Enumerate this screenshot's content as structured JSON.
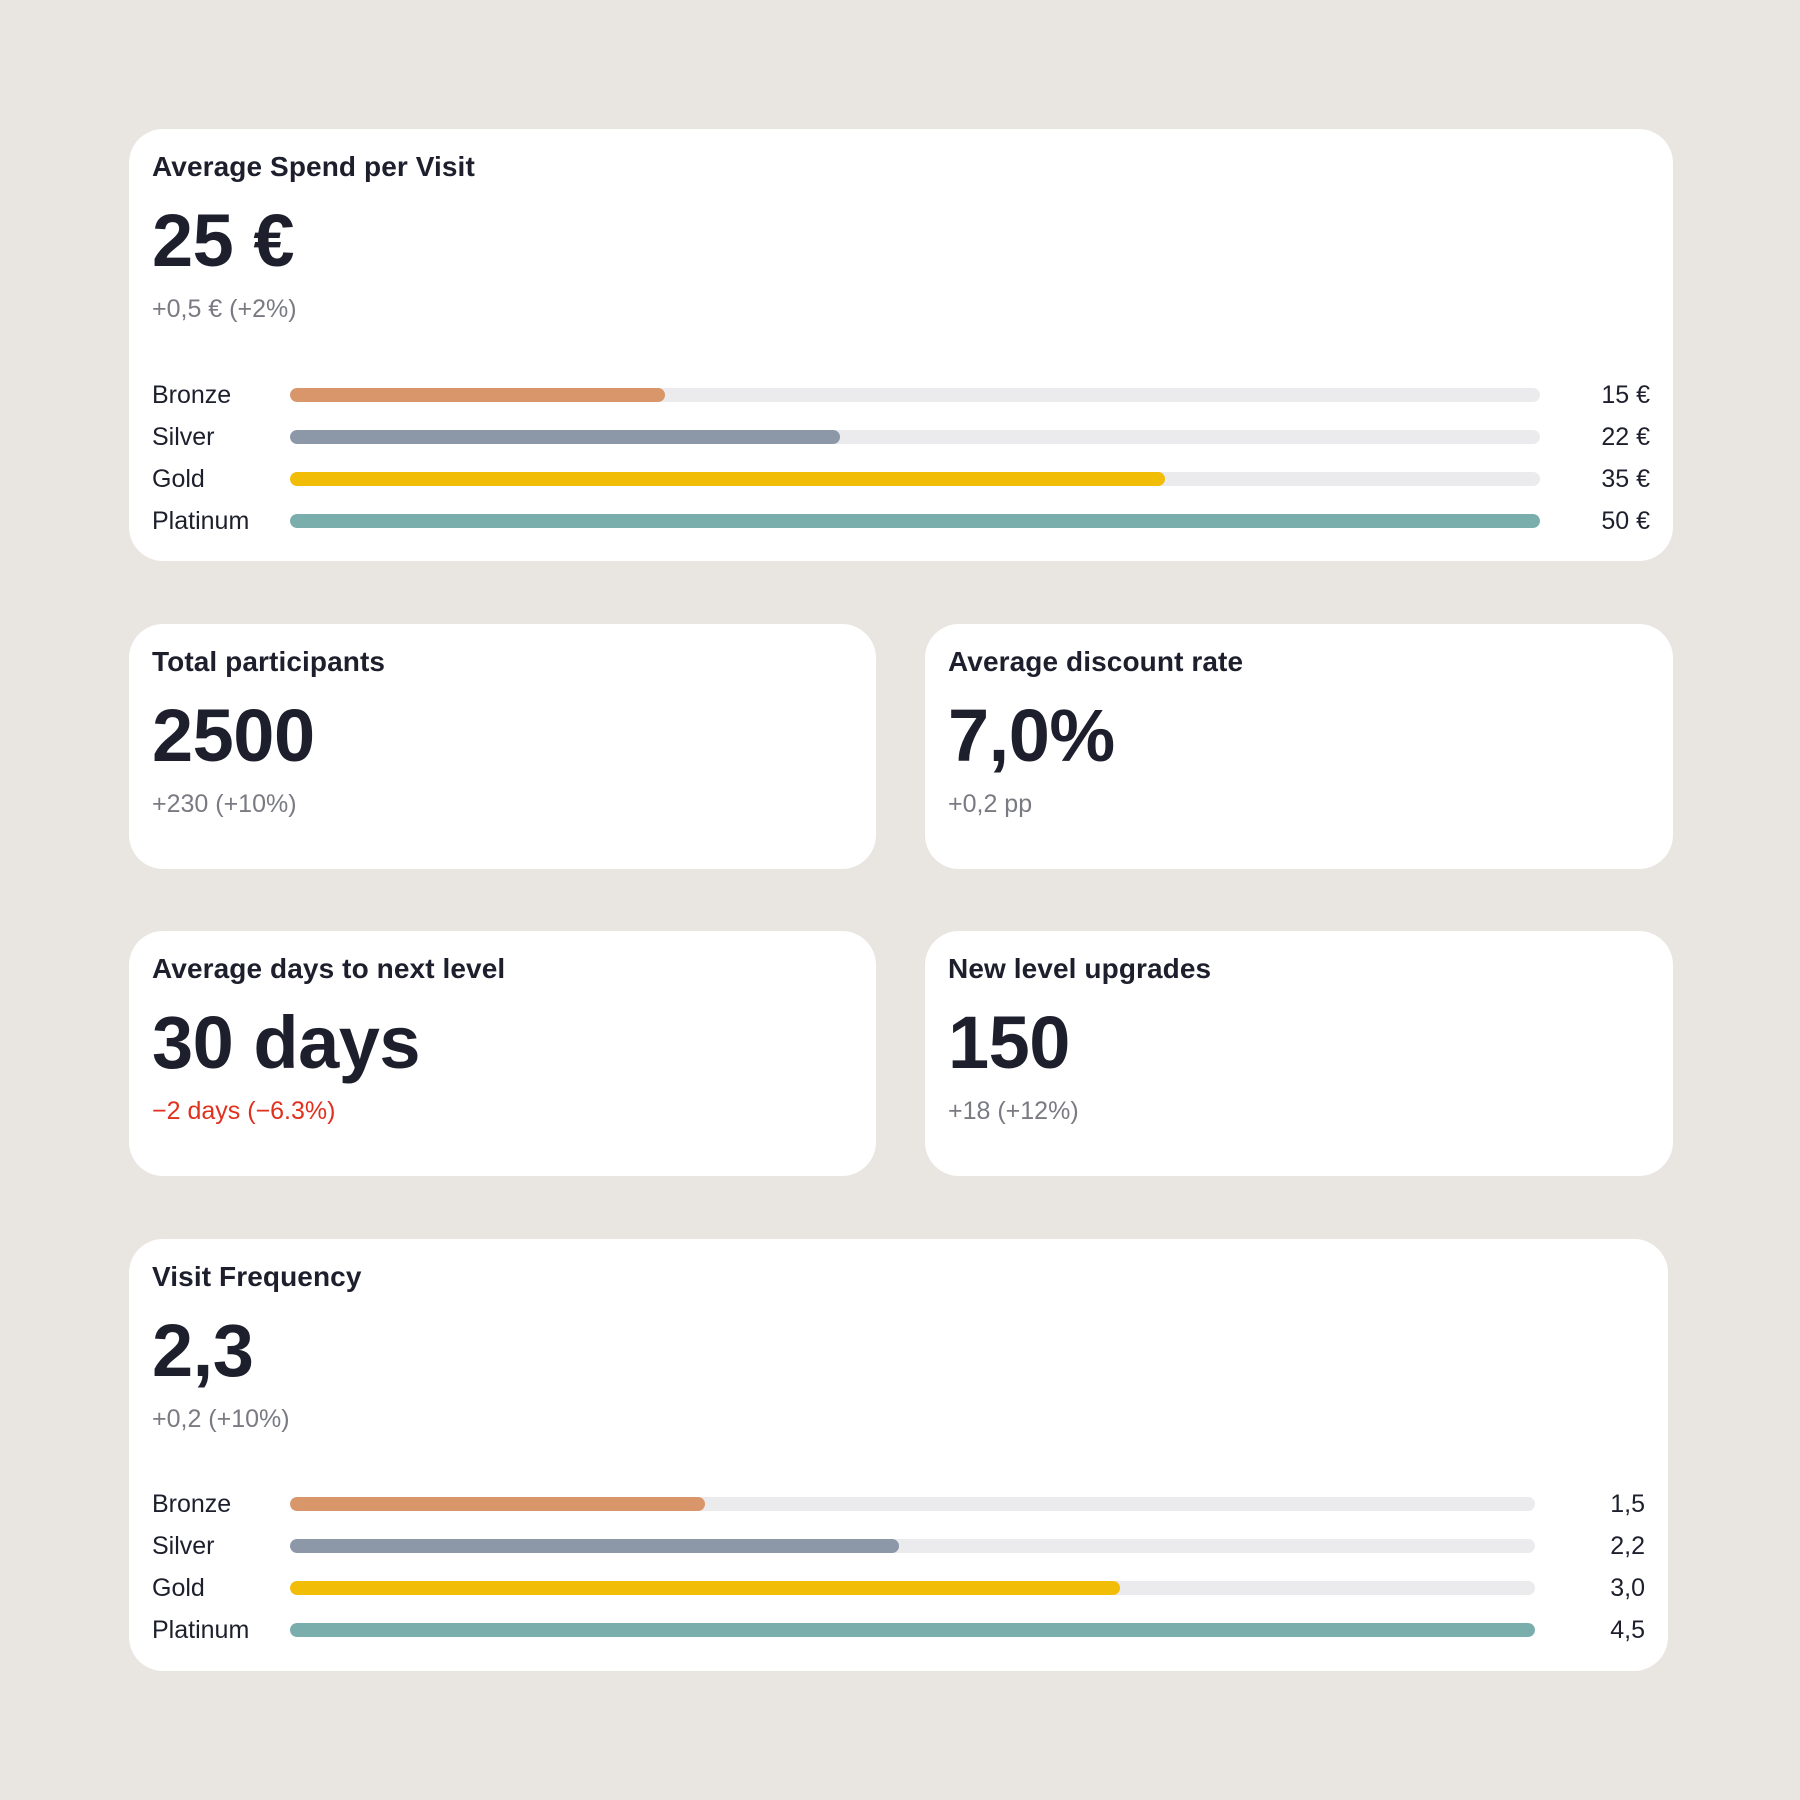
{
  "colors": {
    "bronze": "#d9966a",
    "silver": "#8c97a8",
    "gold": "#f2bd07",
    "platinum": "#79aeac",
    "negative": "#e0301e"
  },
  "spend": {
    "title": "Average Spend per Visit",
    "value": "25 €",
    "delta": "+0,5 € (+2%)",
    "bars": [
      {
        "label": "Bronze",
        "value_text": "15 €",
        "value": 15,
        "color": "#d9966a"
      },
      {
        "label": "Silver",
        "value_text": "22 €",
        "value": 22,
        "color": "#8c97a8"
      },
      {
        "label": "Gold",
        "value_text": "35 €",
        "value": 35,
        "color": "#f2bd07"
      },
      {
        "label": "Platinum",
        "value_text": "50 €",
        "value": 50,
        "color": "#79aeac"
      }
    ],
    "max": 50
  },
  "participants": {
    "title": "Total participants",
    "value": "2500",
    "delta": "+230 (+10%)"
  },
  "discount": {
    "title": "Average discount rate",
    "value": "7,0%",
    "delta": "+0,2 pp"
  },
  "days": {
    "title": "Average days to next level",
    "value": "30 days",
    "delta": "−2 days (−6.3%)"
  },
  "upgrades": {
    "title": "New level upgrades",
    "value": "150",
    "delta": "+18 (+12%)"
  },
  "frequency": {
    "title": "Visit Frequency",
    "value": "2,3",
    "delta": "+0,2 (+10%)",
    "bars": [
      {
        "label": "Bronze",
        "value_text": "1,5",
        "value": 1.5,
        "color": "#d9966a"
      },
      {
        "label": "Silver",
        "value_text": "2,2",
        "value": 2.2,
        "color": "#8c97a8"
      },
      {
        "label": "Gold",
        "value_text": "3,0",
        "value": 3.0,
        "color": "#f2bd07"
      },
      {
        "label": "Platinum",
        "value_text": "4,5",
        "value": 4.5,
        "color": "#79aeac"
      }
    ],
    "max": 4.5
  }
}
